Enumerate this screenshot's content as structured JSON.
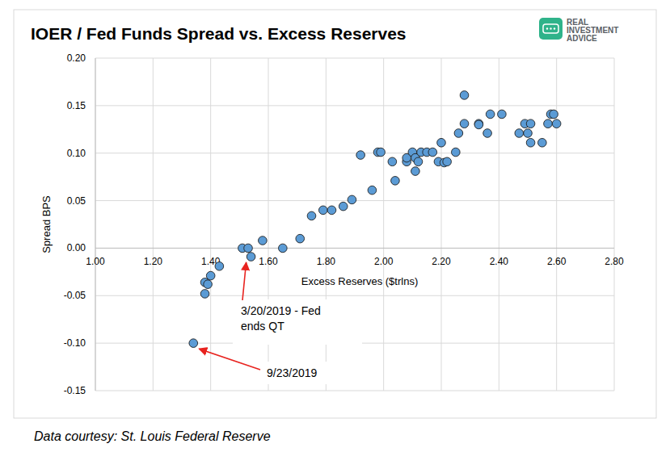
{
  "chart_data": {
    "type": "scatter",
    "title": "IOER / Fed Funds Spread vs. Excess Reserves",
    "x_label": "Excess Reserves ($trlns)",
    "y_label": "Spread BPS",
    "x": [
      1.34,
      1.38,
      1.38,
      1.39,
      1.4,
      1.43,
      1.51,
      1.53,
      1.54,
      1.58,
      1.65,
      1.71,
      1.75,
      1.79,
      1.82,
      1.86,
      1.89,
      1.92,
      1.96,
      1.98,
      1.99,
      2.03,
      2.04,
      2.08,
      2.08,
      2.1,
      2.11,
      2.11,
      2.12,
      2.13,
      2.15,
      2.17,
      2.19,
      2.2,
      2.21,
      2.22,
      2.25,
      2.26,
      2.28,
      2.28,
      2.33,
      2.33,
      2.36,
      2.37,
      2.41,
      2.47,
      2.49,
      2.5,
      2.51,
      2.51,
      2.55,
      2.57,
      2.58,
      2.59,
      2.6
    ],
    "values": [
      -0.1,
      -0.048,
      -0.036,
      -0.038,
      -0.029,
      -0.019,
      0.0,
      0.0,
      -0.009,
      0.008,
      0.0,
      0.01,
      0.034,
      0.04,
      0.04,
      0.044,
      0.051,
      0.098,
      0.061,
      0.101,
      0.101,
      0.091,
      0.071,
      0.091,
      0.095,
      0.101,
      0.081,
      0.095,
      0.091,
      0.101,
      0.101,
      0.101,
      0.091,
      0.111,
      0.09,
      0.091,
      0.101,
      0.121,
      0.161,
      0.131,
      0.131,
      0.13,
      0.121,
      0.141,
      0.141,
      0.121,
      0.131,
      0.121,
      0.111,
      0.131,
      0.111,
      0.131,
      0.141,
      0.141,
      0.131
    ],
    "color": "#5b9bd5",
    "marker": "circle",
    "xlim": [
      1.0,
      2.8
    ],
    "xticks": [
      {
        "value": 1.0,
        "label": "1.00"
      },
      {
        "value": 1.2,
        "label": "1.20"
      },
      {
        "value": 1.4,
        "label": "1.40"
      },
      {
        "value": 1.6,
        "label": "1.60"
      },
      {
        "value": 1.8,
        "label": "1.80"
      },
      {
        "value": 2.0,
        "label": "2.00"
      },
      {
        "value": 2.2,
        "label": "2.20"
      },
      {
        "value": 2.4,
        "label": "2.40"
      },
      {
        "value": 2.6,
        "label": "2.60"
      },
      {
        "value": 2.8,
        "label": "2.80"
      }
    ],
    "ylim": [
      -0.15,
      0.2
    ],
    "yticks": [
      {
        "value": 0.2,
        "label": "0.20"
      },
      0.15,
      {
        "value": 0.1,
        "label": "0.10"
      },
      0.05,
      {
        "value": 0.0,
        "label": "0.00"
      },
      -0.05,
      {
        "value": -0.1,
        "label": "-0.10"
      },
      -0.15
    ],
    "grid": true,
    "annotations": [
      {
        "lines": [
          "3/20/2019 - Fed",
          "ends QT"
        ],
        "x": 1.54,
        "y": -0.009
      },
      {
        "lines": [
          "9/23/2019"
        ],
        "x": 1.34,
        "y": -0.1
      }
    ]
  },
  "logo": [
    "REAL",
    "INVESTMENT",
    "ADVICE"
  ],
  "source": "Data courtesy: St. Louis Federal Reserve"
}
